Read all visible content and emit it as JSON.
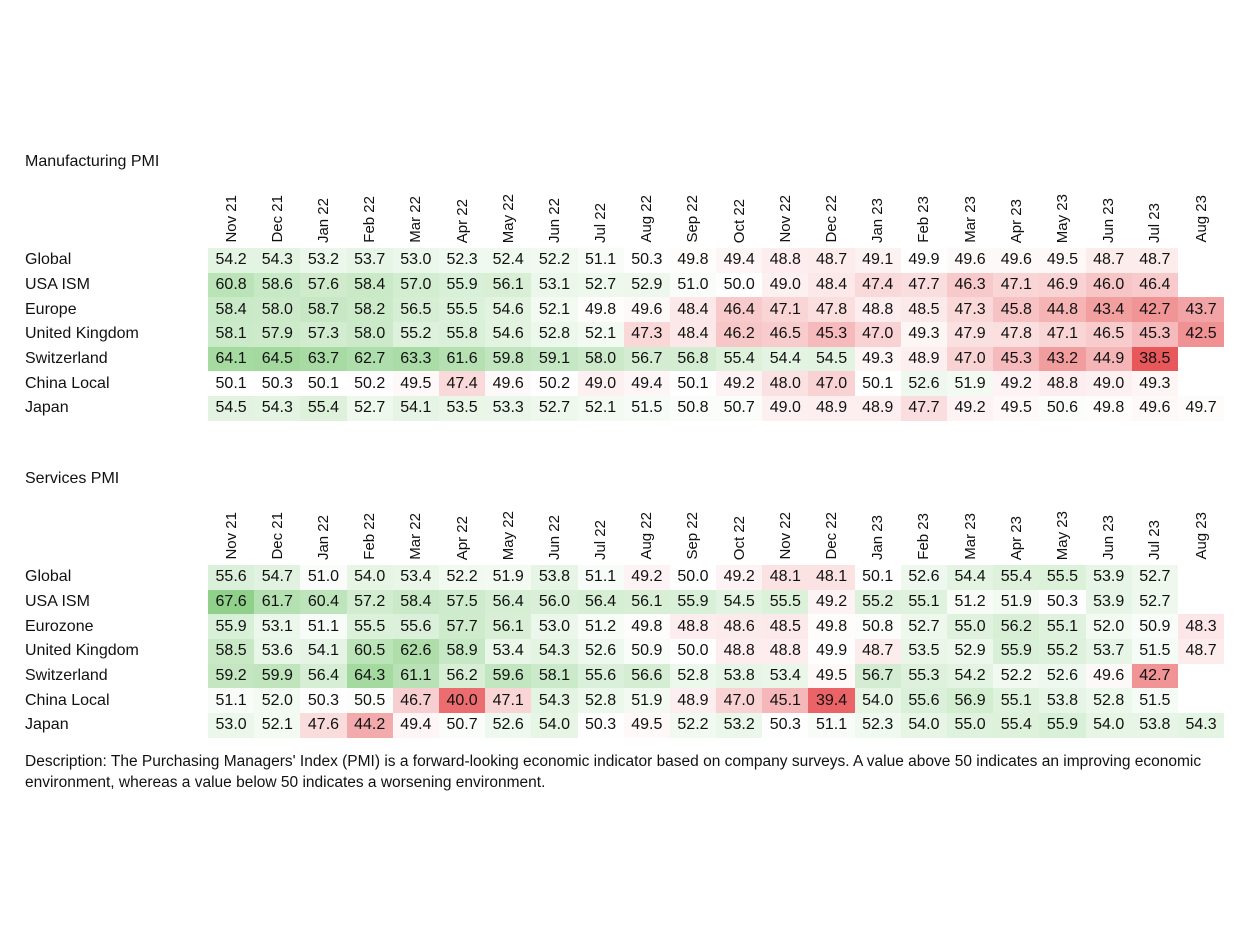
{
  "months": [
    "Nov 21",
    "Dec 21",
    "Jan 22",
    "Feb 22",
    "Mar 22",
    "Apr 22",
    "May 22",
    "Jun 22",
    "Jul 22",
    "Aug 22",
    "Sep 22",
    "Oct 22",
    "Nov 22",
    "Dec 22",
    "Jan 23",
    "Feb 23",
    "Mar 23",
    "Apr 23",
    "May 23",
    "Jun 23",
    "Jul 23",
    "Aug 23"
  ],
  "colors": {
    "positive": "#8fd18a",
    "negative": "#e8575a",
    "neutral": "#ffffff"
  },
  "chart_data": [
    {
      "type": "heatmap",
      "title": "Manufacturing PMI",
      "center": 50,
      "x": [
        "Nov 21",
        "Dec 21",
        "Jan 22",
        "Feb 22",
        "Mar 22",
        "Apr 22",
        "May 22",
        "Jun 22",
        "Jul 22",
        "Aug 22",
        "Sep 22",
        "Oct 22",
        "Nov 22",
        "Dec 22",
        "Jan 23",
        "Feb 23",
        "Mar 23",
        "Apr 23",
        "May 23",
        "Jun 23",
        "Jul 23",
        "Aug 23"
      ],
      "rows": [
        {
          "name": "Global",
          "values": [
            54.2,
            54.3,
            53.2,
            53.7,
            53.0,
            52.3,
            52.4,
            52.2,
            51.1,
            50.3,
            49.8,
            49.4,
            48.8,
            48.7,
            49.1,
            49.9,
            49.6,
            49.6,
            49.5,
            48.7,
            48.7,
            null
          ]
        },
        {
          "name": "USA ISM",
          "values": [
            60.8,
            58.6,
            57.6,
            58.4,
            57.0,
            55.9,
            56.1,
            53.1,
            52.7,
            52.9,
            51.0,
            50.0,
            49.0,
            48.4,
            47.4,
            47.7,
            46.3,
            47.1,
            46.9,
            46.0,
            46.4,
            null
          ]
        },
        {
          "name": "Europe",
          "values": [
            58.4,
            58.0,
            58.7,
            58.2,
            56.5,
            55.5,
            54.6,
            52.1,
            49.8,
            49.6,
            48.4,
            46.4,
            47.1,
            47.8,
            48.8,
            48.5,
            47.3,
            45.8,
            44.8,
            43.4,
            42.7,
            43.7
          ]
        },
        {
          "name": "United Kingdom",
          "values": [
            58.1,
            57.9,
            57.3,
            58.0,
            55.2,
            55.8,
            54.6,
            52.8,
            52.1,
            47.3,
            48.4,
            46.2,
            46.5,
            45.3,
            47.0,
            49.3,
            47.9,
            47.8,
            47.1,
            46.5,
            45.3,
            42.5
          ]
        },
        {
          "name": "Switzerland",
          "values": [
            64.1,
            64.5,
            63.7,
            62.7,
            63.3,
            61.6,
            59.8,
            59.1,
            58.0,
            56.7,
            56.8,
            55.4,
            54.4,
            54.5,
            49.3,
            48.9,
            47.0,
            45.3,
            43.2,
            44.9,
            38.5,
            null
          ]
        },
        {
          "name": "China Local",
          "values": [
            50.1,
            50.3,
            50.1,
            50.2,
            49.5,
            47.4,
            49.6,
            50.2,
            49.0,
            49.4,
            50.1,
            49.2,
            48.0,
            47.0,
            50.1,
            52.6,
            51.9,
            49.2,
            48.8,
            49.0,
            49.3,
            null
          ]
        },
        {
          "name": "Japan",
          "values": [
            54.5,
            54.3,
            55.4,
            52.7,
            54.1,
            53.5,
            53.3,
            52.7,
            52.1,
            51.5,
            50.8,
            50.7,
            49.0,
            48.9,
            48.9,
            47.7,
            49.2,
            49.5,
            50.6,
            49.8,
            49.6,
            49.7
          ]
        }
      ]
    },
    {
      "type": "heatmap",
      "title": "Services PMI",
      "center": 50,
      "x": [
        "Nov 21",
        "Dec 21",
        "Jan 22",
        "Feb 22",
        "Mar 22",
        "Apr 22",
        "May 22",
        "Jun 22",
        "Jul 22",
        "Aug 22",
        "Sep 22",
        "Oct 22",
        "Nov 22",
        "Dec 22",
        "Jan 23",
        "Feb 23",
        "Mar 23",
        "Apr 23",
        "May 23",
        "Jun 23",
        "Jul 23",
        "Aug 23"
      ],
      "rows": [
        {
          "name": "Global",
          "values": [
            55.6,
            54.7,
            51.0,
            54.0,
            53.4,
            52.2,
            51.9,
            53.8,
            51.1,
            49.2,
            50.0,
            49.2,
            48.1,
            48.1,
            50.1,
            52.6,
            54.4,
            55.4,
            55.5,
            53.9,
            52.7,
            null
          ]
        },
        {
          "name": "USA ISM",
          "values": [
            67.6,
            61.7,
            60.4,
            57.2,
            58.4,
            57.5,
            56.4,
            56.0,
            56.4,
            56.1,
            55.9,
            54.5,
            55.5,
            49.2,
            55.2,
            55.1,
            51.2,
            51.9,
            50.3,
            53.9,
            52.7,
            null
          ]
        },
        {
          "name": "Eurozone",
          "values": [
            55.9,
            53.1,
            51.1,
            55.5,
            55.6,
            57.7,
            56.1,
            53.0,
            51.2,
            49.8,
            48.8,
            48.6,
            48.5,
            49.8,
            50.8,
            52.7,
            55.0,
            56.2,
            55.1,
            52.0,
            50.9,
            48.3
          ]
        },
        {
          "name": "United Kingdom",
          "values": [
            58.5,
            53.6,
            54.1,
            60.5,
            62.6,
            58.9,
            53.4,
            54.3,
            52.6,
            50.9,
            50.0,
            48.8,
            48.8,
            49.9,
            48.7,
            53.5,
            52.9,
            55.9,
            55.2,
            53.7,
            51.5,
            48.7
          ]
        },
        {
          "name": "Switzerland",
          "values": [
            59.2,
            59.9,
            56.4,
            64.3,
            61.1,
            56.2,
            59.6,
            58.1,
            55.6,
            56.6,
            52.8,
            53.8,
            53.4,
            49.5,
            56.7,
            55.3,
            54.2,
            52.2,
            52.6,
            49.6,
            42.7,
            null
          ]
        },
        {
          "name": "China Local",
          "values": [
            51.1,
            52.0,
            50.3,
            50.5,
            46.7,
            40.0,
            47.1,
            54.3,
            52.8,
            51.9,
            48.9,
            47.0,
            45.1,
            39.4,
            54.0,
            55.6,
            56.9,
            55.1,
            53.8,
            52.8,
            51.5,
            null
          ]
        },
        {
          "name": "Japan",
          "values": [
            53.0,
            52.1,
            47.6,
            44.2,
            49.4,
            50.7,
            52.6,
            54.0,
            50.3,
            49.5,
            52.2,
            53.2,
            50.3,
            51.1,
            52.3,
            54.0,
            55.0,
            55.4,
            55.9,
            54.0,
            53.8,
            54.3
          ]
        }
      ]
    }
  ],
  "description": "Description: The Purchasing Managers' Index (PMI) is a forward-looking economic indicator based on company surveys. A value above 50 indicates an improving economic environment, whereas a value below 50 indicates a worsening environment."
}
